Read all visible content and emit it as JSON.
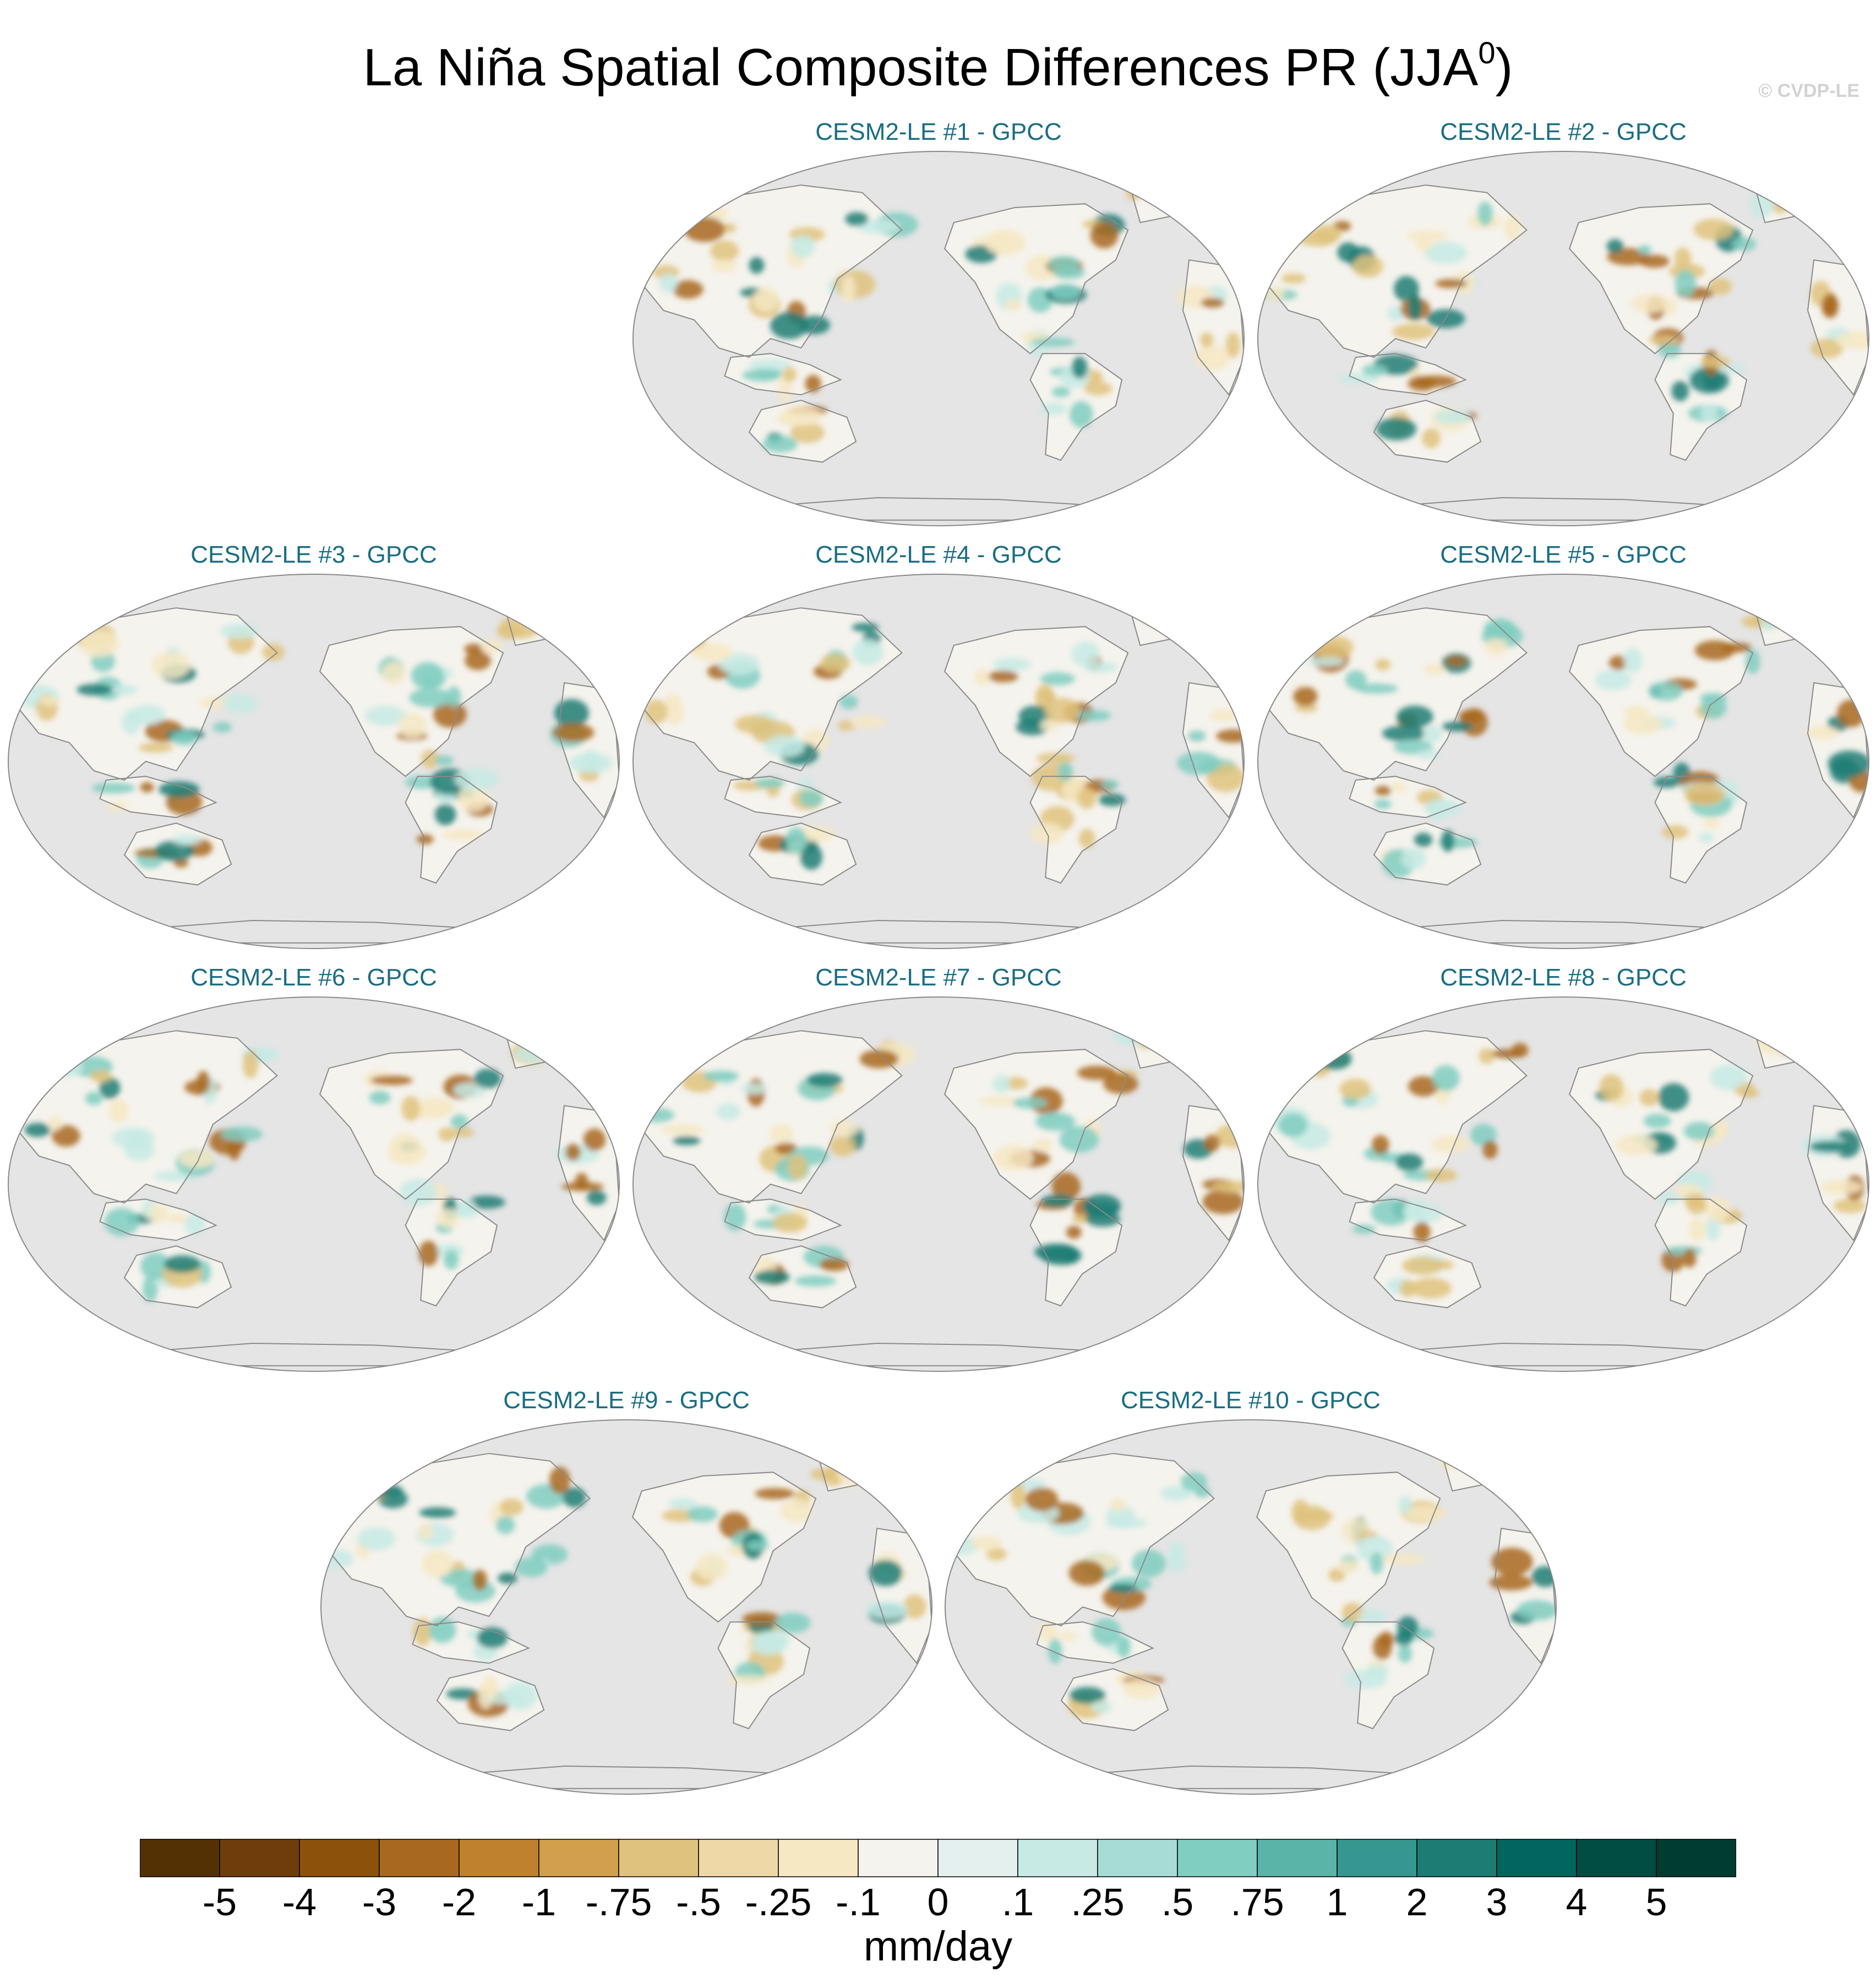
{
  "title": {
    "main": "La Niña Spatial Composite Differences PR (JJA",
    "superscript": "0",
    "close": ")"
  },
  "credit": "© CVDP-LE",
  "panels": [
    {
      "label": "CESM2-LE #1 - GPCC"
    },
    {
      "label": "CESM2-LE #2 - GPCC"
    },
    {
      "label": "CESM2-LE #3 - GPCC"
    },
    {
      "label": "CESM2-LE #4 - GPCC"
    },
    {
      "label": "CESM2-LE #5 - GPCC"
    },
    {
      "label": "CESM2-LE #6 - GPCC"
    },
    {
      "label": "CESM2-LE #7 - GPCC"
    },
    {
      "label": "CESM2-LE #8 - GPCC"
    },
    {
      "label": "CESM2-LE #9 - GPCC"
    },
    {
      "label": "CESM2-LE #10 - GPCC"
    }
  ],
  "colorbar": {
    "units": "mm/day",
    "tick_labels": [
      "-5",
      "-4",
      "-3",
      "-2",
      "-1",
      "-.75",
      "-.5",
      "-.25",
      "-.1",
      "0",
      ".1",
      ".25",
      ".5",
      ".75",
      "1",
      "2",
      "3",
      "4",
      "5"
    ],
    "colors": [
      "#543005",
      "#6f3d0c",
      "#8c510a",
      "#a8681f",
      "#bf812d",
      "#d1a04c",
      "#dfc27d",
      "#eed8a8",
      "#f6e8c3",
      "#f5f3ed",
      "#e4f0ee",
      "#c7eae5",
      "#a6dcd5",
      "#80cdc1",
      "#5ab4a8",
      "#35978f",
      "#1d7d74",
      "#01665e",
      "#014d44",
      "#003c30"
    ]
  },
  "map_colors": {
    "ocean": "#e5e5e5",
    "land_outline": "#8a8a8a",
    "dry_strong": "#a8681f",
    "dry": "#dfc27d",
    "dry_light": "#f6e8c3",
    "wet_light": "#c7eae5",
    "wet": "#80cdc1",
    "wet_strong": "#1d7d74"
  }
}
